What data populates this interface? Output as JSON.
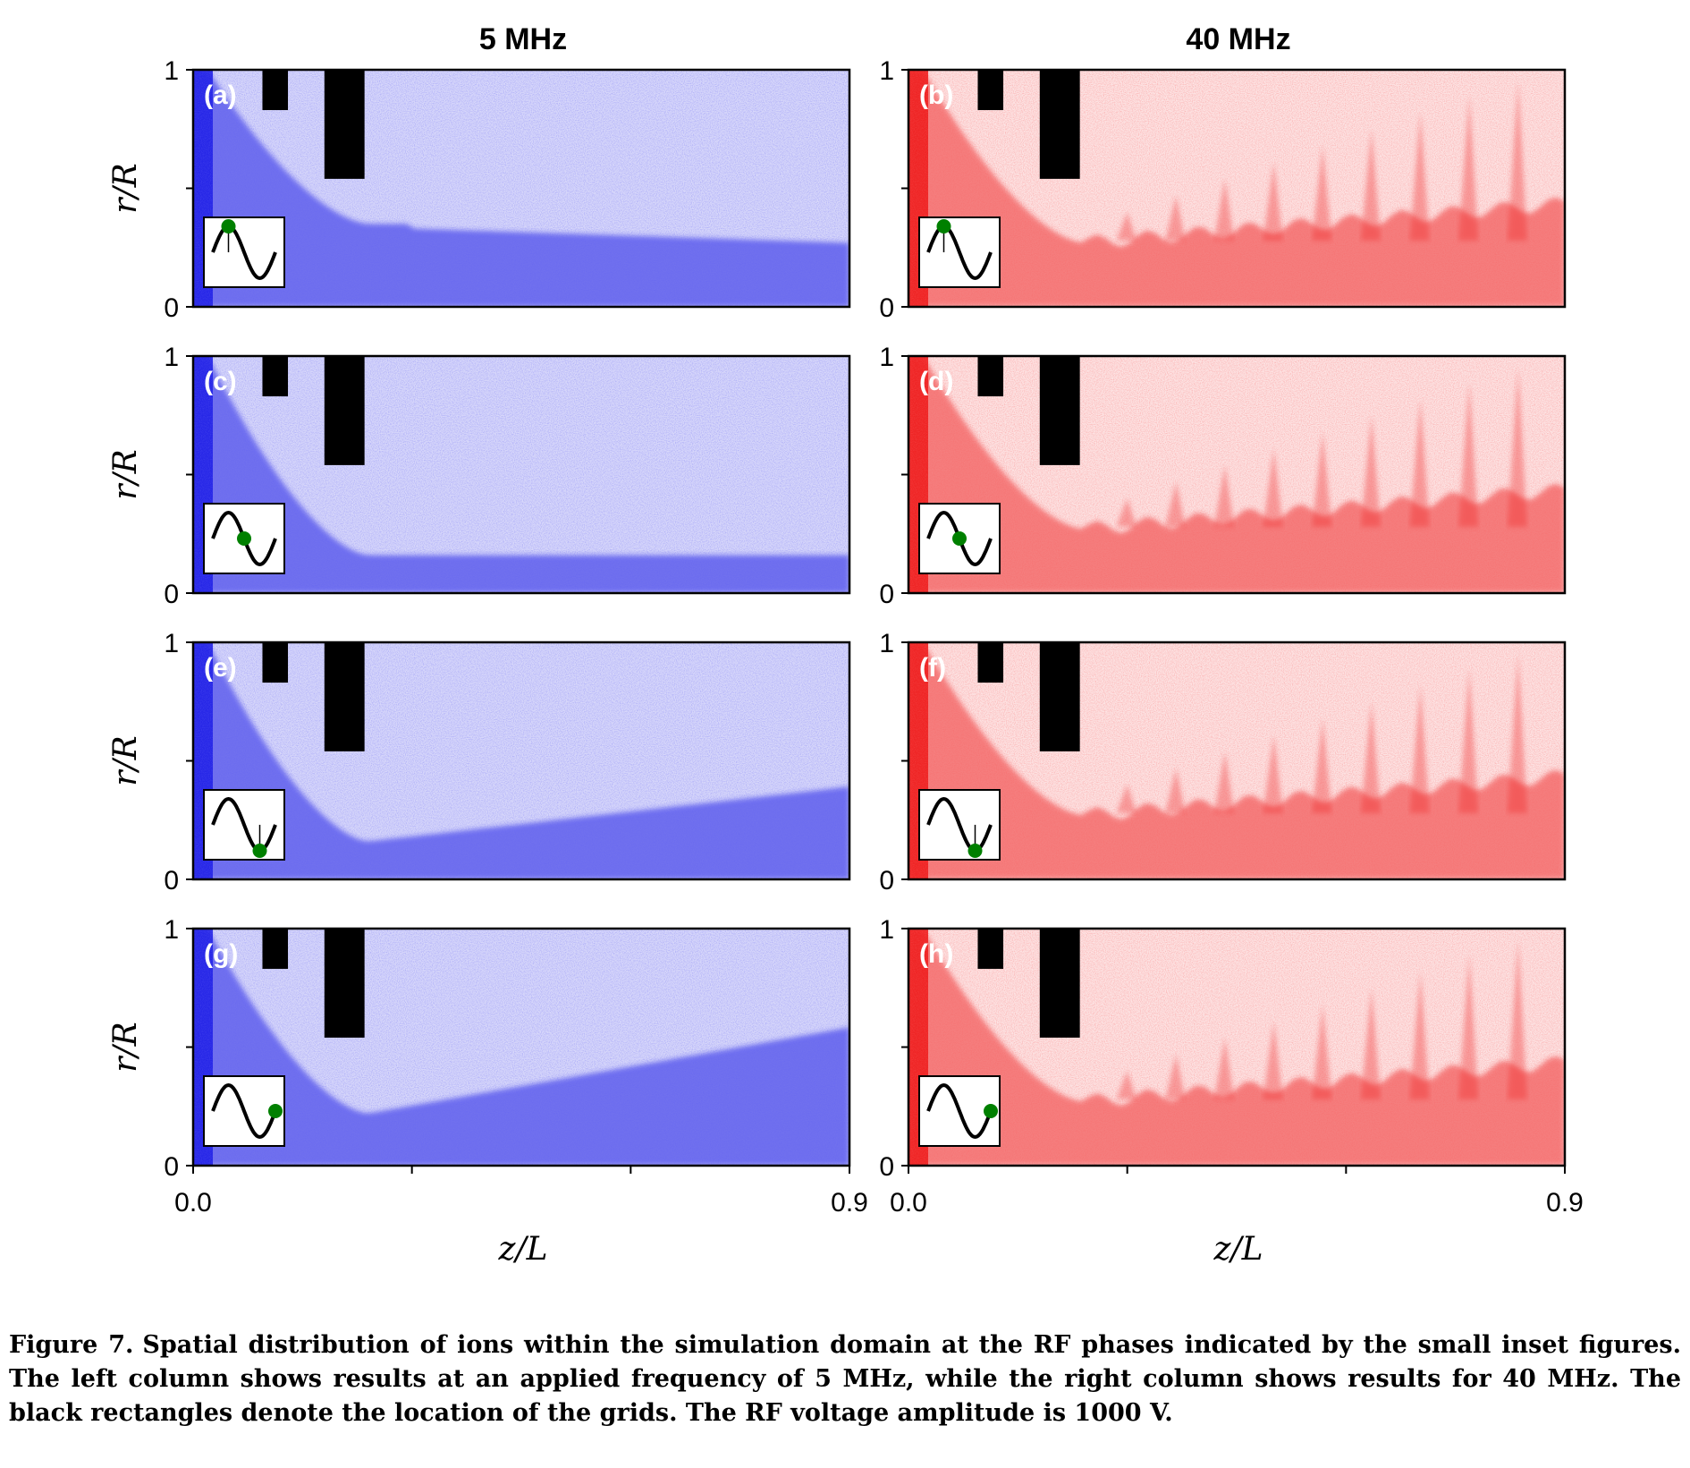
{
  "figure": {
    "column_titles": [
      "5 MHz",
      "40 MHz"
    ],
    "ylabel": "r/R",
    "xlabel": "z/L",
    "x_ticks": [
      "0.0",
      "0.9"
    ],
    "y_ticks": [
      "0",
      "1"
    ],
    "colors": {
      "left": "#1f1fe6",
      "right": "#ee1c1c",
      "grid": "#000000",
      "phase_dot": "#008000"
    }
  },
  "chart_data": {
    "type": "scatter",
    "xlim": [
      0,
      0.9
    ],
    "ylim": [
      0,
      1
    ],
    "grid": false,
    "panels": [
      {
        "label": "(a)",
        "frequency": "5 MHz",
        "phase": 0.25
      },
      {
        "label": "(b)",
        "frequency": "40 MHz",
        "phase": 0.25
      },
      {
        "label": "(c)",
        "frequency": "5 MHz",
        "phase": 0.5
      },
      {
        "label": "(d)",
        "frequency": "40 MHz",
        "phase": 0.5
      },
      {
        "label": "(e)",
        "frequency": "5 MHz",
        "phase": 0.75
      },
      {
        "label": "(f)",
        "frequency": "40 MHz",
        "phase": 0.75
      },
      {
        "label": "(g)",
        "frequency": "5 MHz",
        "phase": 1.0
      },
      {
        "label": "(h)",
        "frequency": "40 MHz",
        "phase": 1.0
      }
    ],
    "grids": [
      {
        "z_start": 0.095,
        "z_end": 0.13,
        "r_start": 0.83,
        "r_end": 1.0
      },
      {
        "z_start": 0.18,
        "z_end": 0.235,
        "r_start": 0.54,
        "r_end": 1.0
      }
    ]
  },
  "caption": {
    "label": "Figure 7.",
    "text": "Spatial distribution of ions within the simulation domain at the RF phases indicated by the small inset figures. The left column shows results at an applied frequency of 5 MHz, while the right column shows results for 40 MHz. The black rectangles denote the location of the grids. The RF voltage amplitude is 1000 V."
  }
}
